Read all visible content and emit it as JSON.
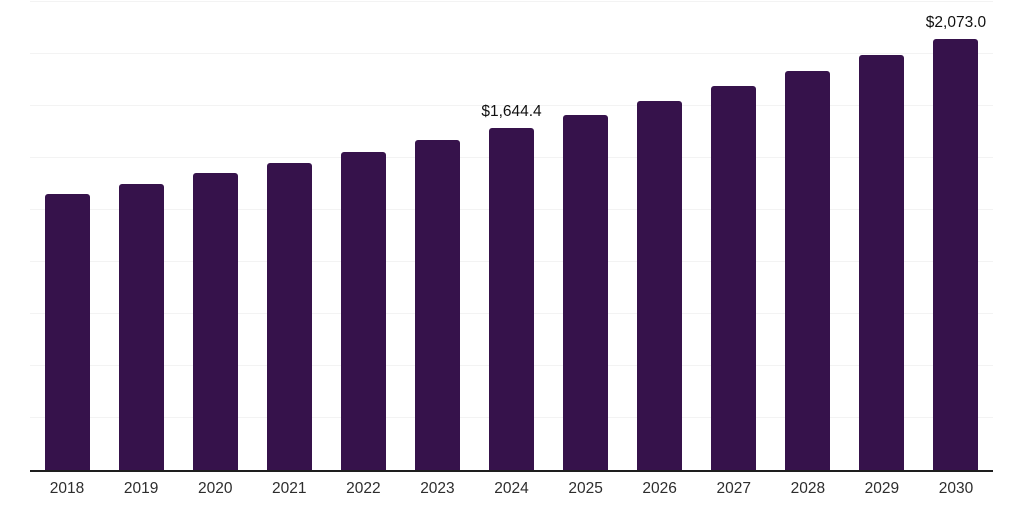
{
  "chart_data": {
    "type": "bar",
    "title": "",
    "xlabel": "",
    "ylabel": "",
    "categories": [
      "2018",
      "2019",
      "2020",
      "2021",
      "2022",
      "2023",
      "2024",
      "2025",
      "2026",
      "2027",
      "2028",
      "2029",
      "2030"
    ],
    "values": [
      1328,
      1376,
      1426,
      1478,
      1531,
      1587,
      1644.4,
      1709,
      1776,
      1846,
      1919,
      1995,
      2073.0
    ],
    "bar_labels": [
      null,
      null,
      null,
      null,
      null,
      null,
      "$1,644.4",
      null,
      null,
      null,
      null,
      null,
      "$2,073.0"
    ],
    "ylim": [
      0,
      2250
    ],
    "gridline_step": 250,
    "grid": true,
    "legend": false,
    "colors": {
      "bar": "#36124b",
      "gridline": "#f3f3f3",
      "axis": "#1e1e1e",
      "data_label": "#111111",
      "tick_label": "#2d2d2d",
      "background": "#ffffff"
    }
  }
}
